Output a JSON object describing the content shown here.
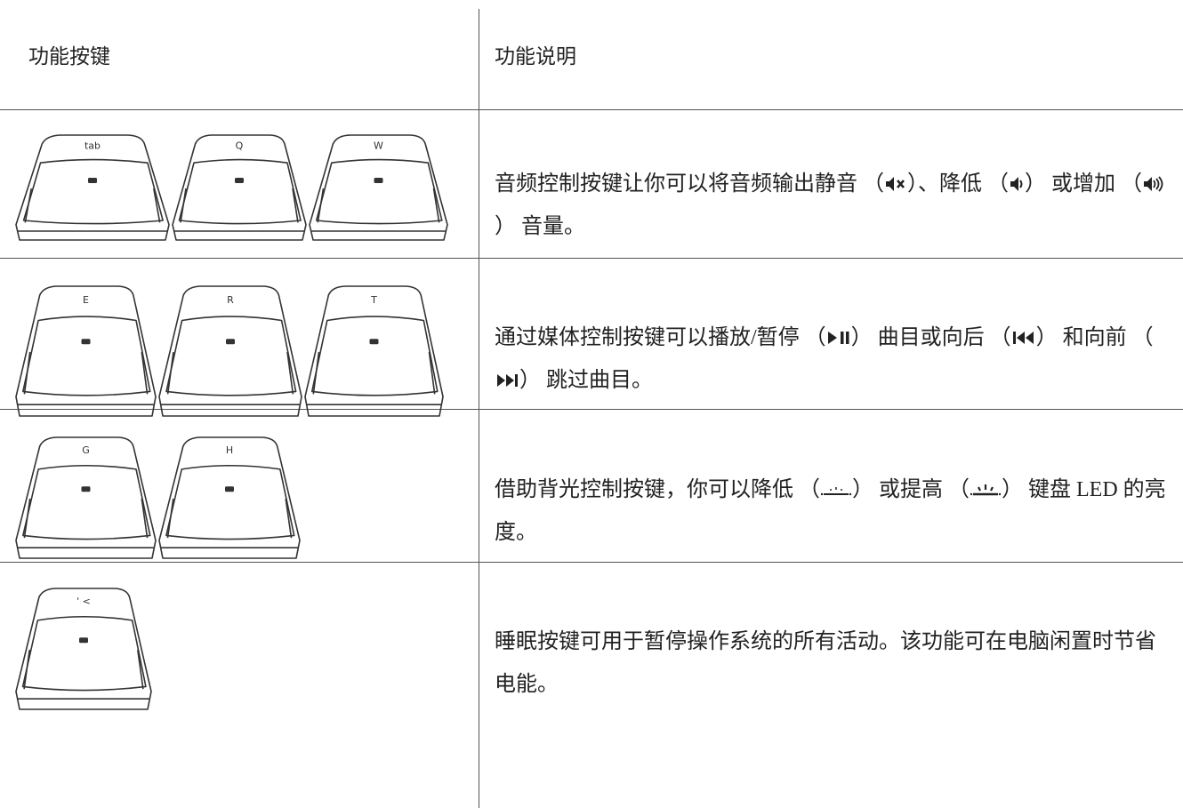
{
  "table": {
    "header": [
      "功能按键",
      "功能说明"
    ],
    "rows": [
      {
        "keys": [
          "tab",
          "Q",
          "W"
        ],
        "description": [
          "音频控制按键让你可以将音频输出静音 （",
          "）、降低 （",
          "） 或增加 （",
          "） 音量。"
        ]
      },
      {
        "keys": [
          "E",
          "R",
          "T"
        ],
        "description": [
          "通过媒体控制按键可以播放/暂停 （",
          "） 曲目或向后 （",
          "） 和向前 （",
          "） 跳过曲目。"
        ]
      },
      {
        "keys": [
          "G",
          "H"
        ],
        "description": [
          "借助背光控制按键，你可以降低 （",
          "） 或提高 （",
          "） 键盘 LED 的亮度。"
        ]
      },
      {
        "keys": [
          "' <"
        ],
        "description": [
          "睡眠按键可用于暂停操作系统的所有活动。该功能可在电脑闲置时节省电能。"
        ]
      }
    ]
  }
}
